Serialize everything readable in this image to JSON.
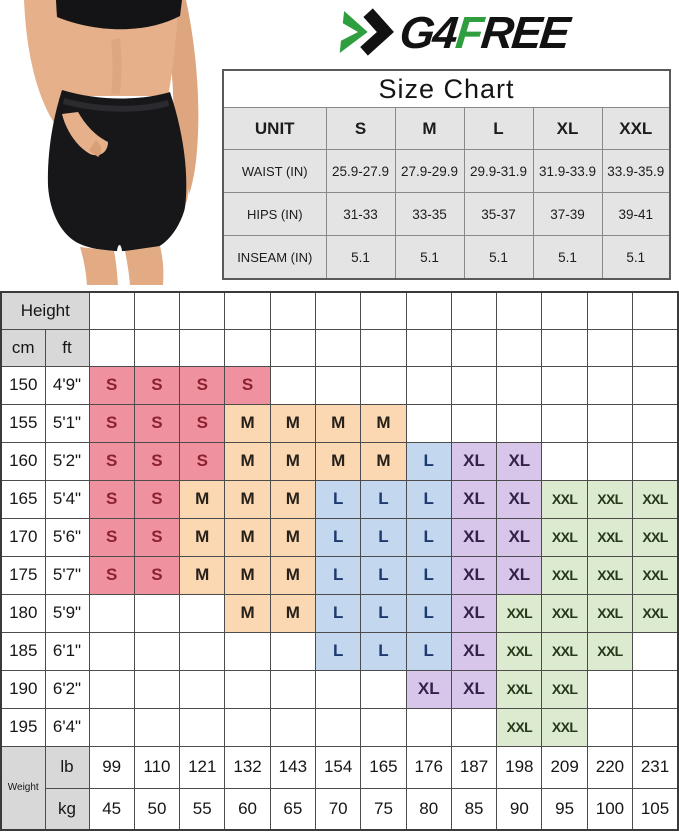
{
  "brand": {
    "logo_part1": "G4",
    "logo_part2": "F",
    "logo_part3": "REE",
    "logo_green": "#2f9e3f",
    "logo_black": "#121212"
  },
  "product_photo": {
    "description": "Model wearing black high-waist running shorts with hand in side pocket",
    "shorts_color": "#17171a",
    "skin_color": "#e6b08a"
  },
  "size_chart": {
    "title": "Size Chart",
    "columns": [
      "UNIT",
      "S",
      "M",
      "L",
      "XL",
      "XXL"
    ],
    "rows": [
      {
        "label": "WAIST (IN)",
        "values": [
          "25.9-27.9",
          "27.9-29.9",
          "29.9-31.9",
          "31.9-33.9",
          "33.9-35.9"
        ]
      },
      {
        "label": "HIPS (IN)",
        "values": [
          "31-33",
          "33-35",
          "35-37",
          "37-39",
          "39-41"
        ]
      },
      {
        "label": "INSEAM (IN)",
        "values": [
          "5.1",
          "5.1",
          "5.1",
          "5.1",
          "5.1"
        ]
      }
    ]
  },
  "size_grid": {
    "height_header": "Height",
    "unit_headers": [
      "cm",
      "ft"
    ],
    "weight_label": "Weight",
    "weight_units": [
      "lb",
      "kg"
    ],
    "weights_lb": [
      "99",
      "110",
      "121",
      "132",
      "143",
      "154",
      "165",
      "176",
      "187",
      "198",
      "209",
      "220",
      "231"
    ],
    "weights_kg": [
      "45",
      "50",
      "55",
      "60",
      "65",
      "70",
      "75",
      "80",
      "85",
      "90",
      "95",
      "100",
      "105"
    ],
    "size_colors": {
      "S": {
        "bg": "#f0919f",
        "text": "#8c212f"
      },
      "M": {
        "bg": "#fbd8b1",
        "text": "#27211a"
      },
      "L": {
        "bg": "#c3d7ef",
        "text": "#1d3a6e"
      },
      "XL": {
        "bg": "#d8c6ea",
        "text": "#302347"
      },
      "XXL": {
        "bg": "#dcebd0",
        "text": "#253818"
      }
    },
    "rows": [
      {
        "cm": "150",
        "ft": "4'9\"",
        "sizes": [
          "S",
          "S",
          "S",
          "S",
          "",
          "",
          "",
          "",
          "",
          "",
          "",
          "",
          ""
        ]
      },
      {
        "cm": "155",
        "ft": "5'1\"",
        "sizes": [
          "S",
          "S",
          "S",
          "M",
          "M",
          "M",
          "M",
          "",
          "",
          "",
          "",
          "",
          ""
        ]
      },
      {
        "cm": "160",
        "ft": "5'2\"",
        "sizes": [
          "S",
          "S",
          "S",
          "M",
          "M",
          "M",
          "M",
          "L",
          "XL",
          "XL",
          "",
          "",
          ""
        ]
      },
      {
        "cm": "165",
        "ft": "5'4\"",
        "sizes": [
          "S",
          "S",
          "M",
          "M",
          "M",
          "L",
          "L",
          "L",
          "XL",
          "XL",
          "XXL",
          "XXL",
          "XXL"
        ]
      },
      {
        "cm": "170",
        "ft": "5'6\"",
        "sizes": [
          "S",
          "S",
          "M",
          "M",
          "M",
          "L",
          "L",
          "L",
          "XL",
          "XL",
          "XXL",
          "XXL",
          "XXL"
        ]
      },
      {
        "cm": "175",
        "ft": "5'7\"",
        "sizes": [
          "S",
          "S",
          "M",
          "M",
          "M",
          "L",
          "L",
          "L",
          "XL",
          "XL",
          "XXL",
          "XXL",
          "XXL"
        ]
      },
      {
        "cm": "180",
        "ft": "5'9\"",
        "sizes": [
          "",
          "",
          "",
          "M",
          "M",
          "L",
          "L",
          "L",
          "XL",
          "XXL",
          "XXL",
          "XXL",
          "XXL"
        ]
      },
      {
        "cm": "185",
        "ft": "6'1\"",
        "sizes": [
          "",
          "",
          "",
          "",
          "",
          "L",
          "L",
          "L",
          "XL",
          "XXL",
          "XXL",
          "XXL",
          ""
        ]
      },
      {
        "cm": "190",
        "ft": "6'2\"",
        "sizes": [
          "",
          "",
          "",
          "",
          "",
          "",
          "",
          "XL",
          "XL",
          "XXL",
          "XXL",
          "",
          ""
        ]
      },
      {
        "cm": "195",
        "ft": "6'4\"",
        "sizes": [
          "",
          "",
          "",
          "",
          "",
          "",
          "",
          "",
          "",
          "XXL",
          "XXL",
          "",
          ""
        ]
      }
    ]
  }
}
